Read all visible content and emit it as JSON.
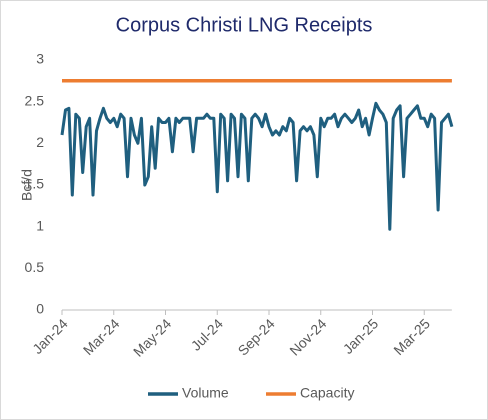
{
  "chart_data": {
    "type": "line",
    "title": "Corpus Christi LNG Receipts",
    "y_label": "Bcf/d",
    "categories": [
      "Jan-24",
      null,
      null,
      null,
      null,
      null,
      null,
      null,
      null,
      null,
      null,
      null,
      null,
      null,
      null,
      "Mar-24",
      null,
      null,
      null,
      null,
      null,
      null,
      null,
      null,
      null,
      null,
      null,
      null,
      null,
      null,
      "May-24",
      null,
      null,
      null,
      null,
      null,
      null,
      null,
      null,
      null,
      null,
      null,
      null,
      null,
      null,
      "Jul-24",
      null,
      null,
      null,
      null,
      null,
      null,
      null,
      null,
      null,
      null,
      null,
      null,
      null,
      null,
      "Sep-24",
      null,
      null,
      null,
      null,
      null,
      null,
      null,
      null,
      null,
      null,
      null,
      null,
      null,
      null,
      "Nov-24",
      null,
      null,
      null,
      null,
      null,
      null,
      null,
      null,
      null,
      null,
      null,
      null,
      null,
      null,
      "Jan-25",
      null,
      null,
      null,
      null,
      null,
      null,
      null,
      null,
      null,
      null,
      null,
      null,
      null,
      null,
      "Mar-25",
      null,
      null,
      null,
      null,
      null,
      null,
      null,
      null
    ],
    "series": [
      {
        "name": "Volume",
        "color": "#1f5f7f",
        "width": 3,
        "values": [
          2.1,
          2.4,
          2.42,
          1.38,
          2.35,
          2.3,
          1.65,
          2.2,
          2.3,
          1.38,
          2.15,
          2.3,
          2.42,
          2.3,
          2.25,
          2.3,
          2.2,
          2.35,
          2.3,
          1.6,
          2.3,
          2.1,
          2.0,
          2.3,
          1.5,
          1.6,
          2.2,
          1.7,
          2.3,
          2.25,
          2.25,
          2.3,
          1.9,
          2.3,
          2.25,
          2.3,
          2.3,
          2.3,
          1.9,
          2.3,
          2.3,
          2.3,
          2.35,
          2.3,
          2.3,
          1.42,
          2.35,
          2.3,
          1.55,
          2.35,
          2.3,
          1.6,
          2.35,
          2.3,
          1.55,
          2.3,
          2.35,
          2.3,
          2.2,
          2.35,
          2.2,
          2.1,
          2.15,
          2.1,
          2.2,
          2.15,
          2.3,
          2.25,
          1.55,
          2.15,
          2.2,
          2.15,
          2.2,
          2.1,
          1.6,
          2.3,
          2.2,
          2.3,
          2.3,
          2.35,
          2.2,
          2.3,
          2.35,
          2.3,
          2.25,
          2.3,
          2.4,
          2.2,
          2.3,
          2.1,
          2.3,
          2.48,
          2.4,
          2.35,
          2.25,
          0.97,
          2.3,
          2.4,
          2.45,
          1.6,
          2.3,
          2.35,
          2.4,
          2.45,
          2.3,
          2.3,
          2.2,
          2.35,
          2.3,
          1.2,
          2.25,
          2.3,
          2.35,
          2.2
        ]
      },
      {
        "name": "Capacity",
        "color": "#ed7d31",
        "width": 3.5,
        "values": [
          2.75,
          2.75,
          2.75,
          2.75,
          2.75,
          2.75,
          2.75,
          2.75,
          2.75,
          2.75,
          2.75,
          2.75,
          2.75,
          2.75,
          2.75,
          2.75,
          2.75,
          2.75,
          2.75,
          2.75,
          2.75,
          2.75,
          2.75,
          2.75,
          2.75,
          2.75,
          2.75,
          2.75,
          2.75,
          2.75,
          2.75,
          2.75,
          2.75,
          2.75,
          2.75,
          2.75,
          2.75,
          2.75,
          2.75,
          2.75,
          2.75,
          2.75,
          2.75,
          2.75,
          2.75,
          2.75,
          2.75,
          2.75,
          2.75,
          2.75,
          2.75,
          2.75,
          2.75,
          2.75,
          2.75,
          2.75,
          2.75,
          2.75,
          2.75,
          2.75,
          2.75,
          2.75,
          2.75,
          2.75,
          2.75,
          2.75,
          2.75,
          2.75,
          2.75,
          2.75,
          2.75,
          2.75,
          2.75,
          2.75,
          2.75,
          2.75,
          2.75,
          2.75,
          2.75,
          2.75,
          2.75,
          2.75,
          2.75,
          2.75,
          2.75,
          2.75,
          2.75,
          2.75,
          2.75,
          2.75,
          2.75,
          2.75,
          2.75,
          2.75,
          2.75,
          2.75,
          2.75,
          2.75,
          2.75,
          2.75,
          2.75,
          2.75,
          2.75,
          2.75,
          2.75,
          2.75,
          2.75,
          2.75,
          2.75,
          2.75,
          2.75,
          2.75,
          2.75,
          2.75
        ]
      }
    ],
    "ylim": [
      0,
      3
    ],
    "yticks": [
      0,
      0.5,
      1,
      1.5,
      2,
      2.5,
      3
    ],
    "grid": false,
    "legend": "bottom"
  }
}
